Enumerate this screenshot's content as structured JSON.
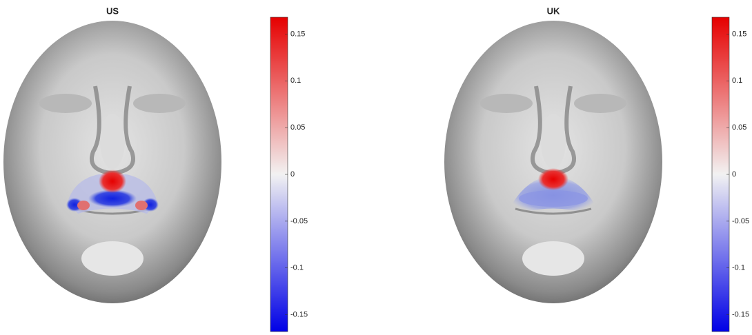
{
  "chart_data": [
    {
      "type": "colorbar-map",
      "title": "US",
      "ylim": [
        -0.168,
        0.168
      ],
      "yticks": [
        -0.15,
        -0.1,
        -0.05,
        0,
        0.05,
        0.1,
        0.15
      ],
      "colormap": [
        "#0000e6",
        "#f2f2f2",
        "#e60000"
      ]
    },
    {
      "type": "colorbar-map",
      "title": "UK",
      "ylim": [
        -0.168,
        0.168
      ],
      "yticks": [
        -0.15,
        -0.1,
        -0.05,
        0,
        0.05,
        0.1,
        0.15
      ],
      "colormap": [
        "#0000e6",
        "#f2f2f2",
        "#e60000"
      ]
    }
  ]
}
